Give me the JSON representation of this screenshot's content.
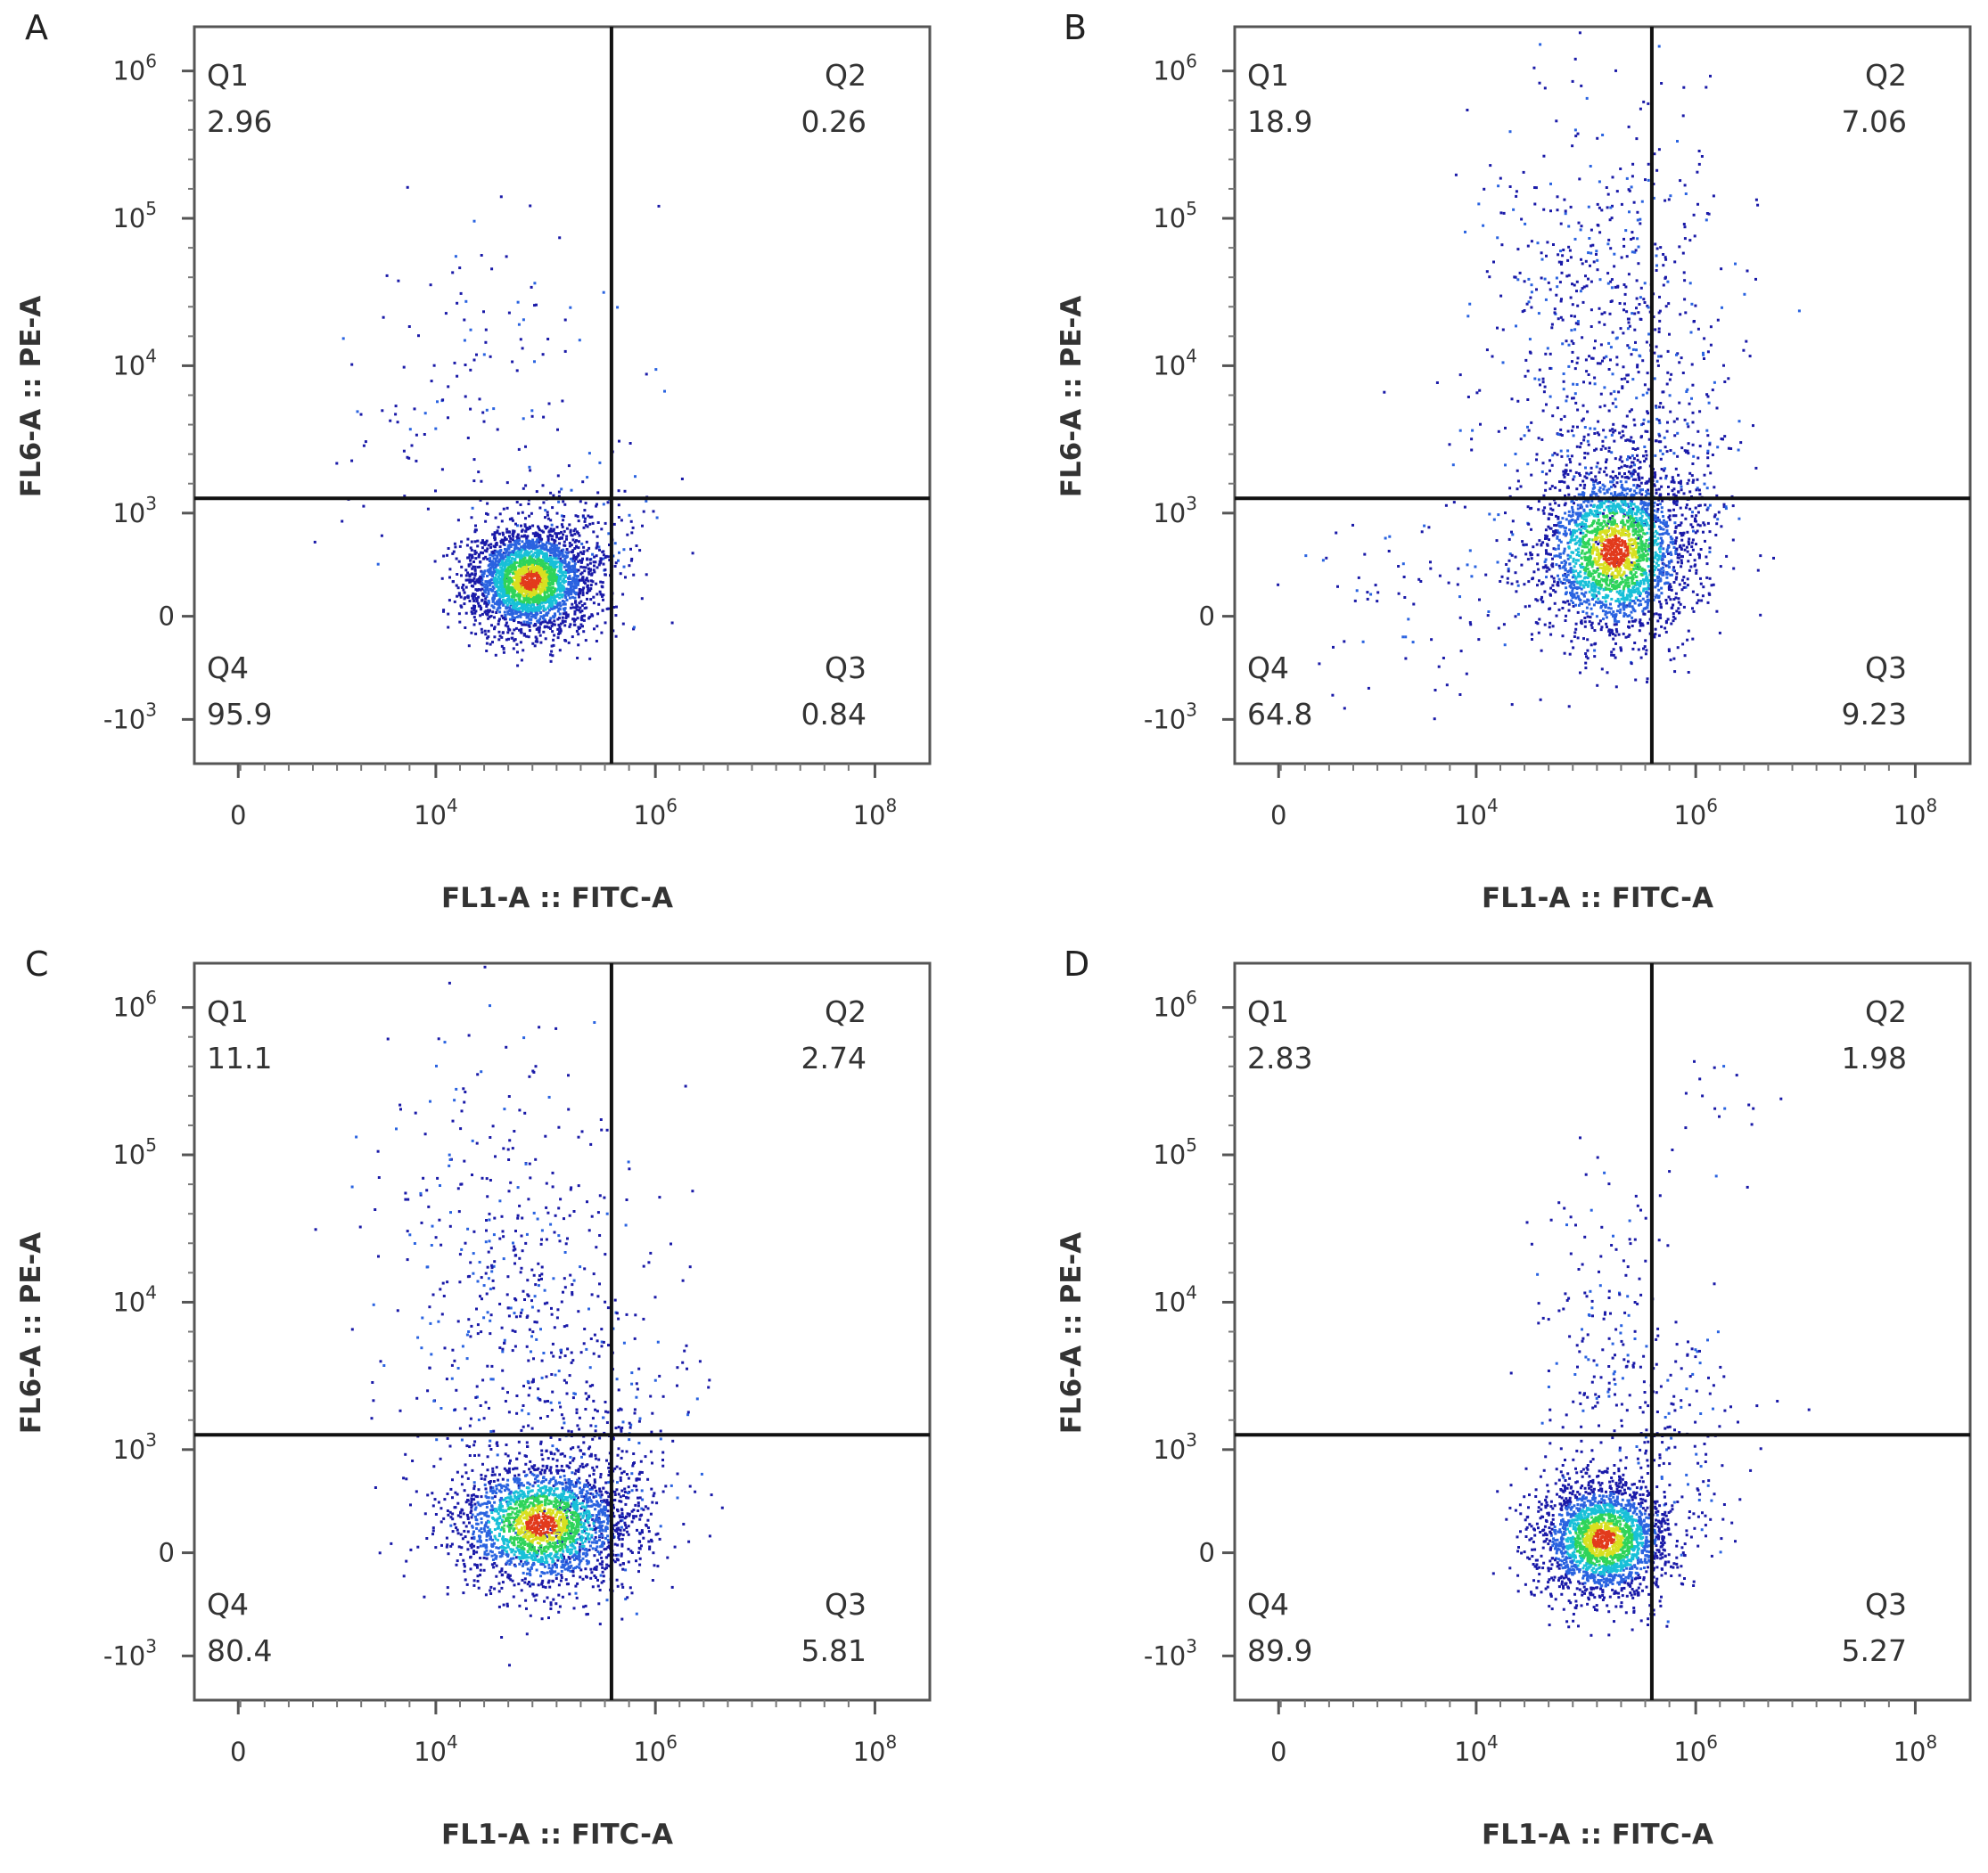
{
  "chart_data": [
    {
      "type": "scatter",
      "panel": "A",
      "xlabel": "FL1-A :: FITC-A",
      "ylabel": "FL6-A :: PE-A",
      "x_ticks": [
        {
          "base": "0",
          "exp": ""
        },
        {
          "base": "10",
          "exp": "4"
        },
        {
          "base": "10",
          "exp": "6"
        },
        {
          "base": "10",
          "exp": "8"
        }
      ],
      "y_ticks": [
        {
          "base": "10",
          "exp": "6"
        },
        {
          "base": "10",
          "exp": "5"
        },
        {
          "base": "10",
          "exp": "4"
        },
        {
          "base": "10",
          "exp": "3"
        },
        {
          "base": "0",
          "exp": ""
        },
        {
          "base": "-10",
          "exp": "3"
        }
      ],
      "quadrants": {
        "Q1": {
          "label": "Q1",
          "value": "2.96"
        },
        "Q2": {
          "label": "Q2",
          "value": "0.26"
        },
        "Q3": {
          "label": "Q3",
          "value": "0.84"
        },
        "Q4": {
          "label": "Q4",
          "value": "95.9"
        }
      },
      "gate": {
        "x": 5.6,
        "y": 3.1
      }
    },
    {
      "type": "scatter",
      "panel": "B",
      "xlabel": "FL1-A :: FITC-A",
      "ylabel": "FL6-A :: PE-A",
      "x_ticks": [
        {
          "base": "0",
          "exp": ""
        },
        {
          "base": "10",
          "exp": "4"
        },
        {
          "base": "10",
          "exp": "6"
        },
        {
          "base": "10",
          "exp": "8"
        }
      ],
      "y_ticks": [
        {
          "base": "10",
          "exp": "6"
        },
        {
          "base": "10",
          "exp": "5"
        },
        {
          "base": "10",
          "exp": "4"
        },
        {
          "base": "10",
          "exp": "3"
        },
        {
          "base": "0",
          "exp": ""
        },
        {
          "base": "-10",
          "exp": "3"
        }
      ],
      "quadrants": {
        "Q1": {
          "label": "Q1",
          "value": "18.9"
        },
        "Q2": {
          "label": "Q2",
          "value": "7.06"
        },
        "Q3": {
          "label": "Q3",
          "value": "9.23"
        },
        "Q4": {
          "label": "Q4",
          "value": "64.8"
        }
      },
      "gate": {
        "x": 5.6,
        "y": 3.1
      }
    },
    {
      "type": "scatter",
      "panel": "C",
      "xlabel": "FL1-A :: FITC-A",
      "ylabel": "FL6-A :: PE-A",
      "x_ticks": [
        {
          "base": "0",
          "exp": ""
        },
        {
          "base": "10",
          "exp": "4"
        },
        {
          "base": "10",
          "exp": "6"
        },
        {
          "base": "10",
          "exp": "8"
        }
      ],
      "y_ticks": [
        {
          "base": "10",
          "exp": "6"
        },
        {
          "base": "10",
          "exp": "5"
        },
        {
          "base": "10",
          "exp": "4"
        },
        {
          "base": "10",
          "exp": "3"
        },
        {
          "base": "0",
          "exp": ""
        },
        {
          "base": "-10",
          "exp": "3"
        }
      ],
      "quadrants": {
        "Q1": {
          "label": "Q1",
          "value": "11.1"
        },
        "Q2": {
          "label": "Q2",
          "value": "2.74"
        },
        "Q3": {
          "label": "Q3",
          "value": "5.81"
        },
        "Q4": {
          "label": "Q4",
          "value": "80.4"
        }
      },
      "gate": {
        "x": 5.6,
        "y": 3.1
      }
    },
    {
      "type": "scatter",
      "panel": "D",
      "xlabel": "FL1-A :: FITC-A",
      "ylabel": "FL6-A :: PE-A",
      "x_ticks": [
        {
          "base": "0",
          "exp": ""
        },
        {
          "base": "10",
          "exp": "4"
        },
        {
          "base": "10",
          "exp": "6"
        },
        {
          "base": "10",
          "exp": "8"
        }
      ],
      "y_ticks": [
        {
          "base": "10",
          "exp": "6"
        },
        {
          "base": "10",
          "exp": "5"
        },
        {
          "base": "10",
          "exp": "4"
        },
        {
          "base": "10",
          "exp": "3"
        },
        {
          "base": "0",
          "exp": ""
        },
        {
          "base": "-10",
          "exp": "3"
        }
      ],
      "quadrants": {
        "Q1": {
          "label": "Q1",
          "value": "2.83"
        },
        "Q2": {
          "label": "Q2",
          "value": "1.98"
        },
        "Q3": {
          "label": "Q3",
          "value": "5.27"
        },
        "Q4": {
          "label": "Q4",
          "value": "89.9"
        }
      },
      "gate": {
        "x": 5.6,
        "y": 3.1
      }
    }
  ],
  "density_colors": [
    "#1a1aa8",
    "#2a63e0",
    "#18c0d8",
    "#2fd45a",
    "#d8e021",
    "#e23a1c"
  ]
}
